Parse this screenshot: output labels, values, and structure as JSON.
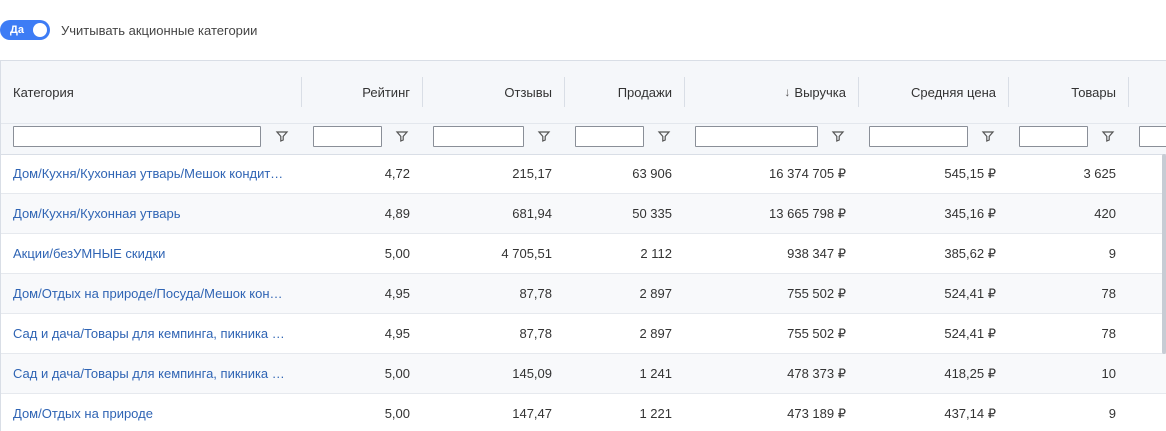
{
  "toggle": {
    "label": "Да",
    "text": "Учитывать акционные категории",
    "on": true,
    "color": "#3d7cf5"
  },
  "table": {
    "columns": [
      {
        "key": "category",
        "label": "Категория"
      },
      {
        "key": "rating",
        "label": "Рейтинг"
      },
      {
        "key": "reviews",
        "label": "Отзывы"
      },
      {
        "key": "sales",
        "label": "Продажи"
      },
      {
        "key": "revenue",
        "label": "Выручка",
        "sort": "desc"
      },
      {
        "key": "avg_price",
        "label": "Средняя цена"
      },
      {
        "key": "items",
        "label": "Товары"
      }
    ],
    "sort_icon": "arrow-down-icon",
    "filter_icon": "filter-icon",
    "link_color": "#2f64b4",
    "rows": [
      {
        "category": "Дом/Кухня/Кухонная утварь/Мешок кондитерский",
        "rating": "4,72",
        "reviews": "215,17",
        "sales": "63 906",
        "revenue": "16 374 705 ₽",
        "avg_price": "545,15 ₽",
        "items": "3 625"
      },
      {
        "category": "Дом/Кухня/Кухонная утварь",
        "rating": "4,89",
        "reviews": "681,94",
        "sales": "50 335",
        "revenue": "13 665 798 ₽",
        "avg_price": "345,16 ₽",
        "items": "420"
      },
      {
        "category": "Акции/безУМНЫЕ скидки",
        "rating": "5,00",
        "reviews": "4 705,51",
        "sales": "2 112",
        "revenue": "938 347 ₽",
        "avg_price": "385,62 ₽",
        "items": "9"
      },
      {
        "category": "Дом/Отдых на природе/Посуда/Мешок кондитерский",
        "rating": "4,95",
        "reviews": "87,78",
        "sales": "2 897",
        "revenue": "755 502 ₽",
        "avg_price": "524,41 ₽",
        "items": "78"
      },
      {
        "category": "Сад и дача/Товары для кемпинга, пикника и отдыха",
        "rating": "4,95",
        "reviews": "87,78",
        "sales": "2 897",
        "revenue": "755 502 ₽",
        "avg_price": "524,41 ₽",
        "items": "78"
      },
      {
        "category": "Сад и дача/Товары для кемпинга, пикника и отдыха",
        "rating": "5,00",
        "reviews": "145,09",
        "sales": "1 241",
        "revenue": "478 373 ₽",
        "avg_price": "418,25 ₽",
        "items": "10"
      },
      {
        "category": "Дом/Отдых на природе",
        "rating": "5,00",
        "reviews": "147,47",
        "sales": "1 221",
        "revenue": "473 189 ₽",
        "avg_price": "437,14 ₽",
        "items": "9"
      }
    ]
  }
}
